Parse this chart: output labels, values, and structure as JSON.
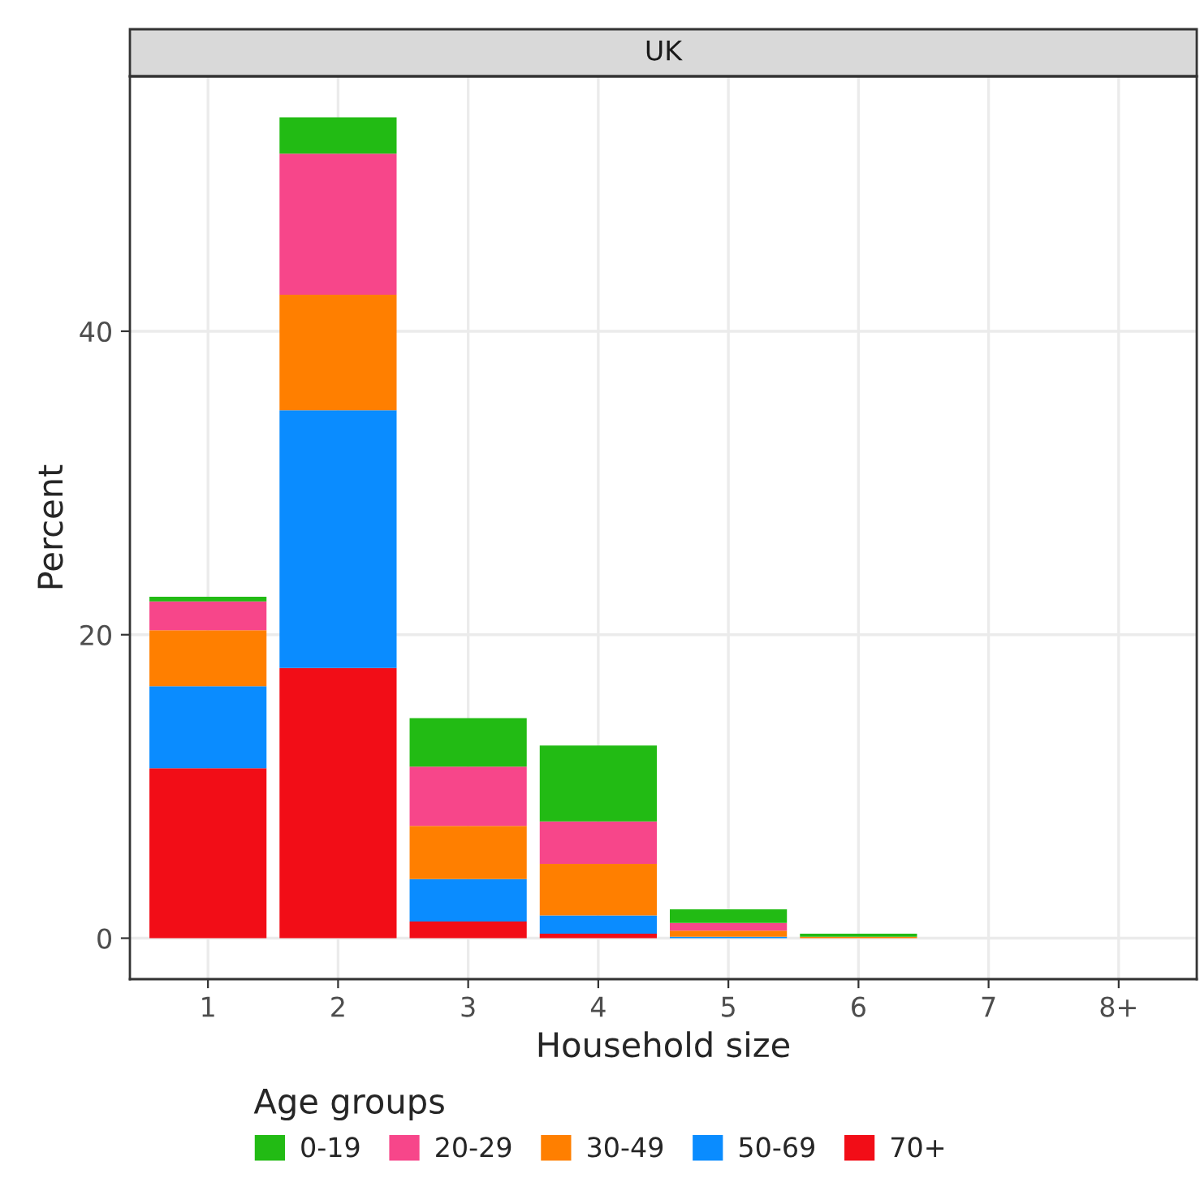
{
  "chart_data": {
    "type": "bar",
    "title": "UK",
    "xlabel": "Household size",
    "ylabel": "Percent",
    "legend_title": "Age groups",
    "categories": [
      "1",
      "2",
      "3",
      "4",
      "5",
      "6",
      "7",
      "8+"
    ],
    "stacked": true,
    "series": [
      {
        "name": "70+",
        "color": "#f20d17",
        "values": [
          11.2,
          17.8,
          1.1,
          0.3,
          0,
          0,
          0,
          0
        ]
      },
      {
        "name": "50-69",
        "color": "#0a8cff",
        "values": [
          5.4,
          17.0,
          2.8,
          1.2,
          0.1,
          0,
          0,
          0
        ]
      },
      {
        "name": "30-49",
        "color": "#ff7f00",
        "values": [
          3.7,
          7.6,
          3.5,
          3.4,
          0.4,
          0.1,
          0,
          0
        ]
      },
      {
        "name": "20-29",
        "color": "#f7468a",
        "values": [
          1.9,
          9.3,
          3.9,
          2.8,
          0.5,
          0,
          0,
          0
        ]
      },
      {
        "name": "0-19",
        "color": "#22bb14",
        "values": [
          0.3,
          2.4,
          3.2,
          5.0,
          0.9,
          0.2,
          0,
          0
        ]
      }
    ],
    "ylim": [
      -2.7,
      56.8
    ],
    "yticks": [
      0,
      20,
      40
    ],
    "grid": true,
    "legend": "bottom"
  }
}
